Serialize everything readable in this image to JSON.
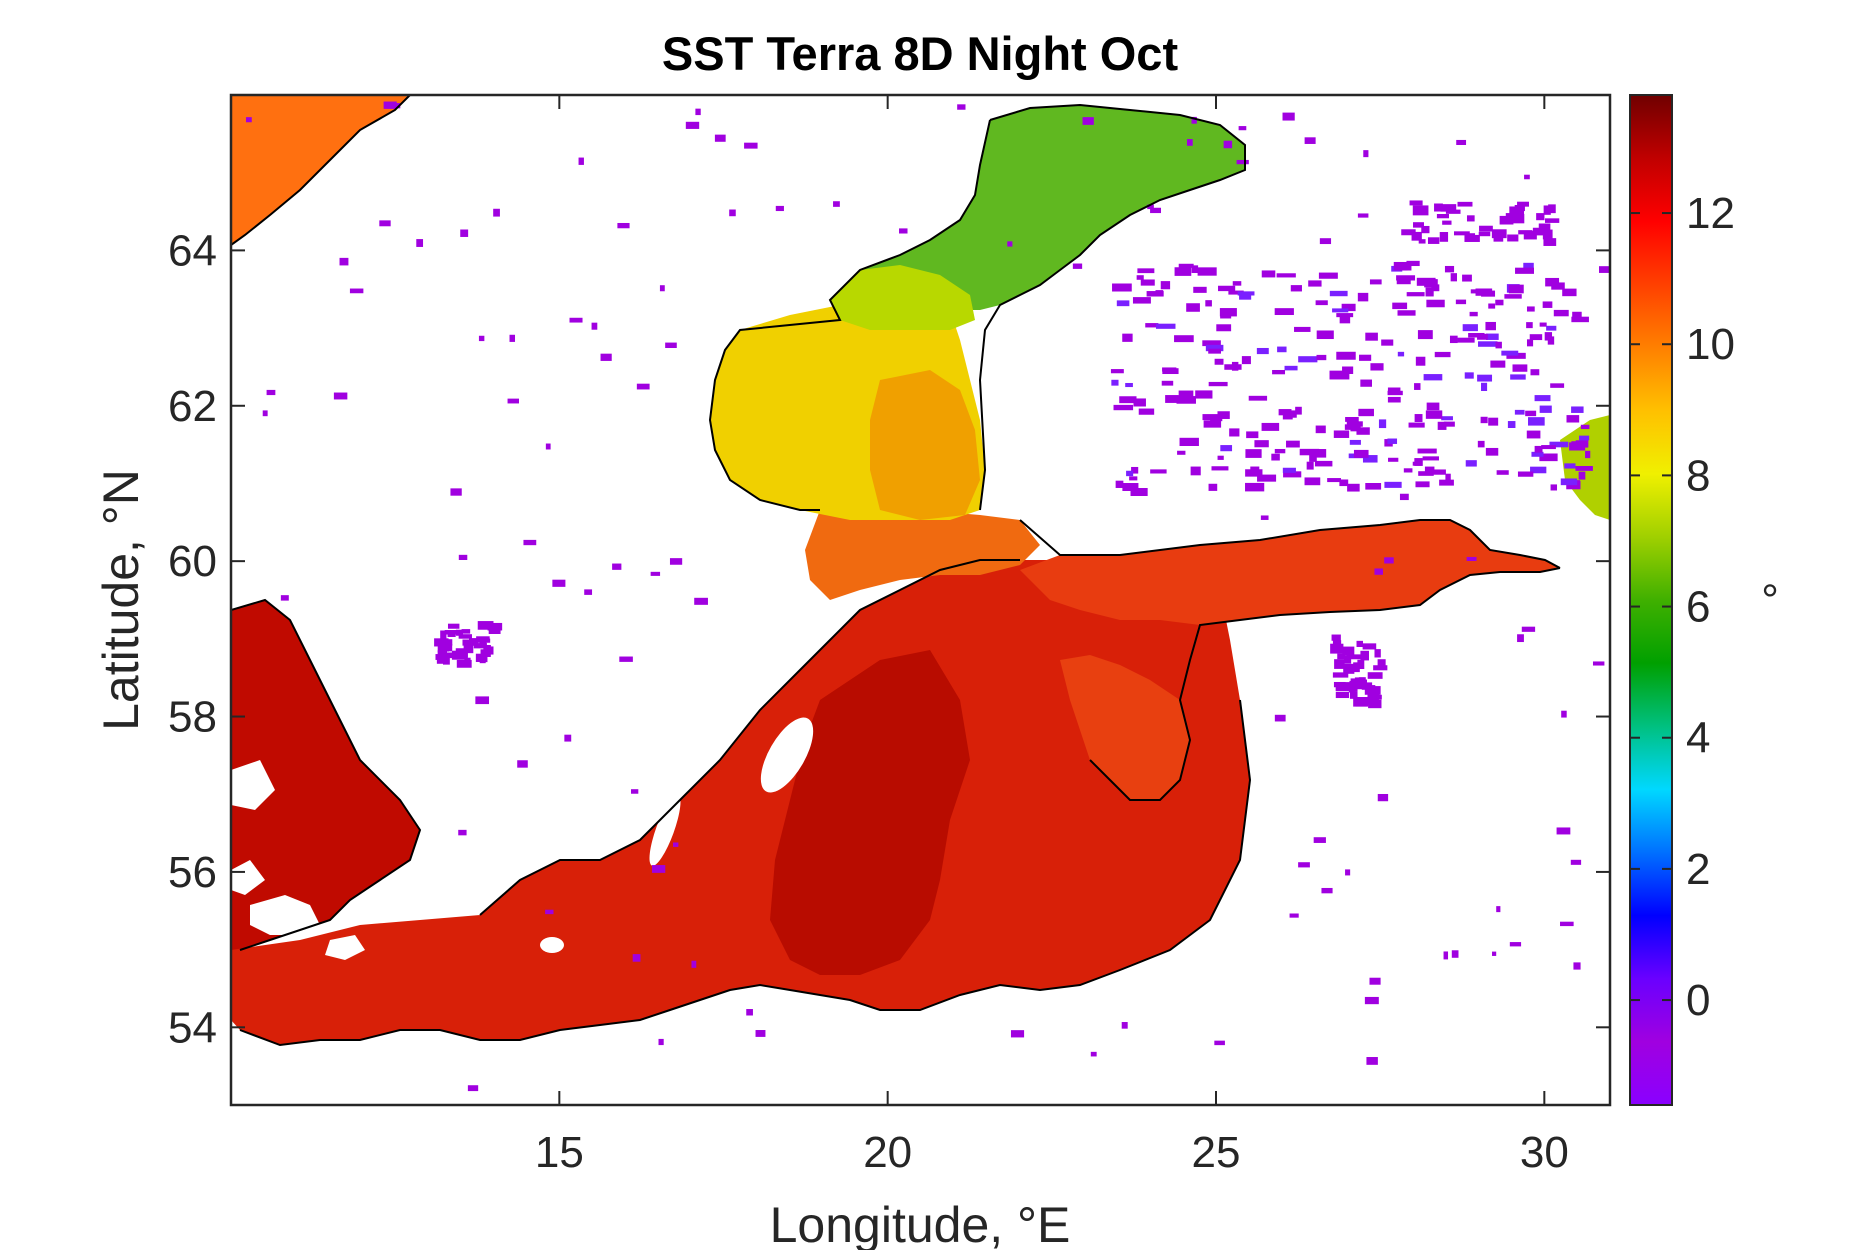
{
  "title": "SST Terra 8D Night Oct",
  "x_axis": {
    "label": "Longitude, °E",
    "range": [
      10,
      31
    ],
    "ticks": [
      15,
      20,
      25,
      30
    ]
  },
  "y_axis": {
    "label": "Latitude, °N",
    "range": [
      53,
      66
    ],
    "ticks": [
      54,
      56,
      58,
      60,
      62,
      64
    ]
  },
  "colorbar": {
    "label": "°",
    "range": [
      -1.6,
      13.8
    ],
    "ticks": [
      0,
      2,
      4,
      6,
      8,
      10,
      12
    ],
    "colormap": [
      "#8a00ff",
      "#a000e0",
      "#6a00ff",
      "#0000ff",
      "#0070ff",
      "#00d8ff",
      "#00c080",
      "#00a000",
      "#40b000",
      "#a0d000",
      "#f0f000",
      "#ffc000",
      "#ff8000",
      "#ff4000",
      "#ff0000",
      "#c00000",
      "#700000"
    ]
  },
  "map": {
    "variable": "Sea surface temperature",
    "region": "Baltic Sea",
    "land_color": "#ffffff",
    "coastline_color": "#000000",
    "invalid_pixel_color": "#a000e0"
  }
}
